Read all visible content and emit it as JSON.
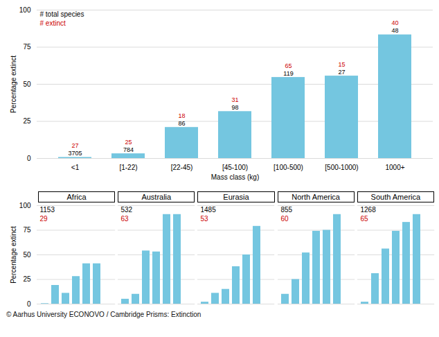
{
  "chart_data": [
    {
      "type": "bar",
      "categories": [
        "<1",
        "[1-22)",
        "[22-45)",
        "[45-100)",
        "[100-500)",
        "[500-1000)",
        "1000+"
      ],
      "values": [
        0.73,
        3.19,
        20.93,
        31.63,
        54.62,
        55.56,
        83.33
      ],
      "color": "#74C6E0",
      "xlabel": "Mass class (kg)",
      "ylabel": "Percentage extinct",
      "ylim": [
        0,
        100
      ],
      "yticks": [
        0,
        25,
        50,
        75,
        100
      ],
      "grid": true,
      "annotations": [
        {
          "text": "# total species",
          "color": "#000000",
          "values": [
            3705,
            784,
            86,
            98,
            119,
            27,
            48
          ]
        },
        {
          "text": "# extinct",
          "color": "#cc0000",
          "values": [
            27,
            25,
            18,
            31,
            65,
            15,
            40
          ]
        }
      ]
    },
    {
      "type": "bar",
      "title": "Africa",
      "categories": [
        null,
        null,
        null,
        null,
        null,
        null,
        null
      ],
      "values": [
        0.5,
        19,
        11,
        28,
        41,
        41,
        0
      ],
      "color": "#74C6E0",
      "ylabel": "Percentage extinct",
      "ylim": [
        0,
        100
      ],
      "yticks": [
        0,
        25,
        50,
        75,
        100
      ],
      "grid": true,
      "tick_labels": "y",
      "annotations": [
        {
          "text": "1153",
          "color": "#000000"
        },
        {
          "text": "29",
          "color": "#cc0000"
        }
      ]
    },
    {
      "type": "bar",
      "title": "Australia",
      "categories": [
        null,
        null,
        null,
        null,
        null,
        null,
        null
      ],
      "values": [
        5,
        10,
        54,
        53,
        91,
        91,
        0
      ],
      "color": "#74C6E0",
      "ylim": [
        0,
        100
      ],
      "yticks": [
        0,
        25,
        50,
        75,
        100
      ],
      "grid": true,
      "tick_labels": false,
      "annotations": [
        {
          "text": "532",
          "color": "#000000"
        },
        {
          "text": "63",
          "color": "#cc0000"
        }
      ]
    },
    {
      "type": "bar",
      "title": "Eurasia",
      "categories": [
        null,
        null,
        null,
        null,
        null,
        null,
        null
      ],
      "values": [
        2,
        11,
        15,
        38,
        50,
        79,
        0
      ],
      "color": "#74C6E0",
      "ylim": [
        0,
        100
      ],
      "yticks": [
        0,
        25,
        50,
        75,
        100
      ],
      "grid": true,
      "tick_labels": false,
      "annotations": [
        {
          "text": "1485",
          "color": "#000000"
        },
        {
          "text": "53",
          "color": "#cc0000"
        }
      ]
    },
    {
      "type": "bar",
      "title": "North America",
      "categories": [
        null,
        null,
        null,
        null,
        null,
        null,
        null
      ],
      "values": [
        10,
        25,
        52,
        74,
        75,
        91,
        0
      ],
      "color": "#74C6E0",
      "ylim": [
        0,
        100
      ],
      "yticks": [
        0,
        25,
        50,
        75,
        100
      ],
      "grid": true,
      "tick_labels": false,
      "annotations": [
        {
          "text": "855",
          "color": "#000000"
        },
        {
          "text": "60",
          "color": "#cc0000"
        }
      ]
    },
    {
      "type": "bar",
      "title": "South America",
      "categories": [
        null,
        null,
        null,
        null,
        null,
        null,
        null
      ],
      "values": [
        2,
        31,
        56,
        74,
        83,
        91,
        0
      ],
      "color": "#74C6E0",
      "ylim": [
        0,
        100
      ],
      "yticks": [
        0,
        25,
        50,
        75,
        100
      ],
      "grid": true,
      "tick_labels": false,
      "annotations": [
        {
          "text": "1268",
          "color": "#000000"
        },
        {
          "text": "65",
          "color": "#cc0000"
        }
      ]
    }
  ],
  "caption": "© Aarhus University ECONOVO / Cambridge Prisms: Extinction"
}
